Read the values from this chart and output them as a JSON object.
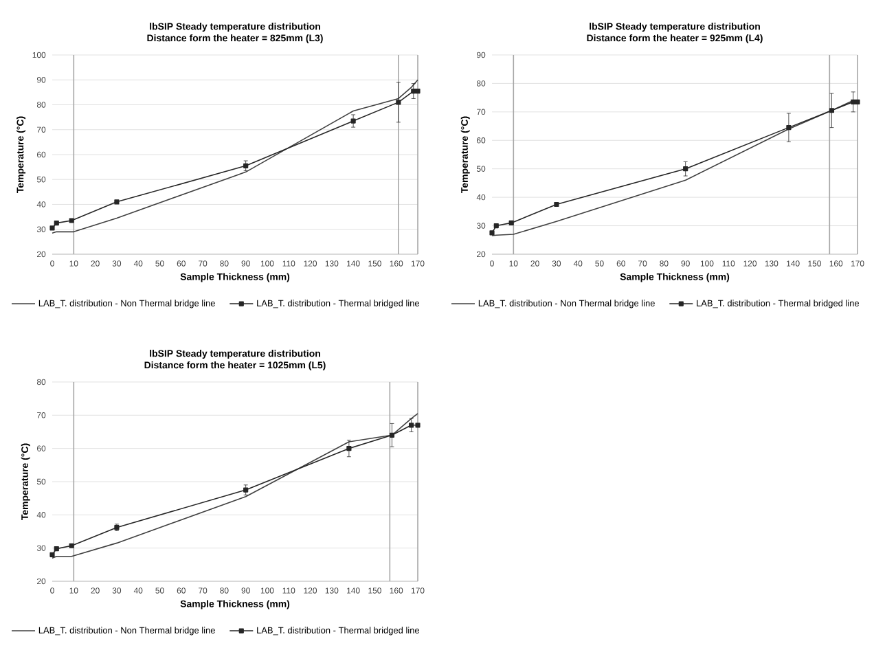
{
  "chart_data": [
    {
      "type": "line",
      "title": "lbSIP Steady temperature distribution",
      "subtitle": "Distance form the heater = 825mm (L3)",
      "xlabel": "Sample Thickness (mm)",
      "ylabel": "Temperature (°C)",
      "xlim": [
        0,
        170
      ],
      "xticks": [
        0,
        10,
        20,
        30,
        40,
        50,
        60,
        70,
        80,
        90,
        100,
        110,
        120,
        130,
        140,
        150,
        160,
        170
      ],
      "ylim": [
        20,
        100
      ],
      "yticks": [
        20,
        30,
        40,
        50,
        60,
        70,
        80,
        90,
        100
      ],
      "grid": "y",
      "legend": "bottom",
      "ref_lines": [
        {
          "axis": "x",
          "value": 10,
          "color": "#a6a6a6"
        },
        {
          "axis": "x",
          "value": 161,
          "color": "#a6a6a6"
        },
        {
          "axis": "x",
          "value": 170,
          "color": "#a6a6a6"
        }
      ],
      "series": [
        {
          "name": "LAB_T. distribution - Non Thermal bridge line",
          "color": "#404040",
          "marker": "none",
          "x": [
            0,
            2,
            10,
            30,
            90,
            140,
            161,
            167,
            170
          ],
          "values": [
            28.5,
            29,
            29,
            34.5,
            53,
            77.5,
            82.5,
            87,
            90
          ]
        },
        {
          "name": "LAB_T. distribution -  Thermal bridged line",
          "color": "#262626",
          "marker": "square",
          "x": [
            0,
            2,
            9,
            30,
            90,
            140,
            161,
            168,
            170
          ],
          "values": [
            30.5,
            32.5,
            33.5,
            41,
            55.5,
            73.5,
            81,
            85.5,
            85.5
          ],
          "errors": [
            null,
            null,
            null,
            null,
            2,
            2.5,
            8,
            3,
            null
          ]
        }
      ]
    },
    {
      "type": "line",
      "title": "lbSIP Steady temperature distribution",
      "subtitle": "Distance form the heater = 925mm (L4)",
      "xlabel": "Sample Thickness (mm)",
      "ylabel": "Temperature (°C)",
      "xlim": [
        0,
        170
      ],
      "xticks": [
        0,
        10,
        20,
        30,
        40,
        50,
        60,
        70,
        80,
        90,
        100,
        110,
        120,
        130,
        140,
        150,
        160,
        170
      ],
      "ylim": [
        20,
        90
      ],
      "yticks": [
        20,
        30,
        40,
        50,
        60,
        70,
        80,
        90
      ],
      "grid": "y",
      "legend": "bottom",
      "ref_lines": [
        {
          "axis": "x",
          "value": 10,
          "color": "#a6a6a6"
        },
        {
          "axis": "x",
          "value": 157,
          "color": "#a6a6a6"
        },
        {
          "axis": "x",
          "value": 170,
          "color": "#a6a6a6"
        }
      ],
      "series": [
        {
          "name": "LAB_T. distribution - Non Thermal bridge line",
          "color": "#404040",
          "marker": "none",
          "x": [
            0,
            2,
            10,
            30,
            90,
            138,
            158,
            168,
            170
          ],
          "values": [
            26.5,
            26.7,
            27,
            31.5,
            46,
            64,
            70.5,
            74,
            73
          ]
        },
        {
          "name": "LAB_T. distribution -  Thermal bridged line",
          "color": "#262626",
          "marker": "square",
          "x": [
            0,
            2,
            9,
            30,
            90,
            138,
            158,
            168,
            170
          ],
          "values": [
            27.5,
            30,
            31,
            37.5,
            50,
            64.5,
            70.5,
            73.5,
            73.5
          ],
          "errors": [
            null,
            null,
            null,
            null,
            2.5,
            5,
            6,
            3.5,
            null
          ]
        }
      ]
    },
    {
      "type": "line",
      "title": "lbSIP Steady temperature distribution",
      "subtitle": "Distance form the heater = 1025mm (L5)",
      "xlabel": "Sample Thickness (mm)",
      "ylabel": "Temperature (°C)",
      "xlim": [
        0,
        170
      ],
      "xticks": [
        0,
        10,
        20,
        30,
        40,
        50,
        60,
        70,
        80,
        90,
        100,
        110,
        120,
        130,
        140,
        150,
        160,
        170
      ],
      "ylim": [
        20,
        80
      ],
      "yticks": [
        20,
        30,
        40,
        50,
        60,
        70,
        80
      ],
      "grid": "y",
      "legend": "bottom",
      "ref_lines": [
        {
          "axis": "x",
          "value": 10,
          "color": "#a6a6a6"
        },
        {
          "axis": "x",
          "value": 157,
          "color": "#a6a6a6"
        },
        {
          "axis": "x",
          "value": 170,
          "color": "#a6a6a6"
        }
      ],
      "series": [
        {
          "name": "LAB_T. distribution - Non Thermal bridge line",
          "color": "#404040",
          "marker": "none",
          "x": [
            0,
            2,
            9,
            30,
            90,
            138,
            158,
            167,
            170
          ],
          "values": [
            27,
            27.5,
            27.5,
            31.5,
            45.5,
            62,
            64,
            69,
            70.5
          ]
        },
        {
          "name": "LAB_T. distribution -  Thermal bridged line",
          "color": "#262626",
          "marker": "square",
          "x": [
            0,
            2,
            9,
            30,
            90,
            138,
            158,
            167,
            170
          ],
          "values": [
            28,
            29.8,
            30.7,
            36.2,
            47.5,
            60,
            64,
            67,
            67
          ],
          "errors": [
            null,
            null,
            null,
            1,
            1.5,
            2.5,
            3.5,
            2,
            null
          ]
        }
      ]
    }
  ]
}
